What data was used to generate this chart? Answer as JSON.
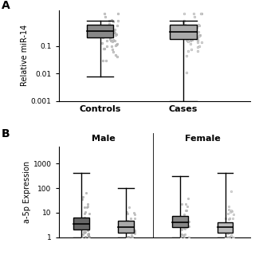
{
  "panel_A": {
    "ylabel": "Relative miR-14",
    "xlabel_labels": [
      "Controls",
      "Cases"
    ],
    "ylim_log": [
      0.001,
      2
    ],
    "yticks": [
      0.001,
      0.01,
      0.1
    ],
    "ytick_labels": [
      "0.001",
      "0.01",
      "0.1"
    ],
    "controls": {
      "q1": 0.2,
      "median": 0.35,
      "q3": 0.6,
      "whisker_low": 0.008,
      "whisker_high": 0.85,
      "box_color": "#888888",
      "scatter_color": "#cccccc"
    },
    "cases": {
      "q1": 0.18,
      "median": 0.32,
      "q3": 0.58,
      "whisker_low": 0.001,
      "whisker_high": 0.85,
      "box_color": "#aaaaaa",
      "scatter_color": "#dddddd"
    }
  },
  "panel_B": {
    "ylabel": "a-5p Expression",
    "ylim_log": [
      1,
      5000
    ],
    "yticks": [
      1,
      10,
      100,
      1000
    ],
    "ytick_labels": [
      "1",
      "10",
      "100",
      "1000"
    ],
    "male_label": "Male",
    "female_label": "Female",
    "Male_Controls": {
      "q1": 2.0,
      "median": 3.5,
      "q3": 6.5,
      "whisker_low": 1.0,
      "whisker_high": 400,
      "box_color": "#666666",
      "scatter_color": "#bbbbbb"
    },
    "Male_Cases": {
      "q1": 1.5,
      "median": 2.5,
      "q3": 4.5,
      "whisker_low": 1.0,
      "whisker_high": 100,
      "box_color": "#aaaaaa",
      "scatter_color": "#cccccc"
    },
    "Female_Controls": {
      "q1": 2.5,
      "median": 4.0,
      "q3": 7.5,
      "whisker_low": 1.0,
      "whisker_high": 300,
      "box_color": "#888888",
      "scatter_color": "#c8c8c8"
    },
    "Female_Cases": {
      "q1": 1.5,
      "median": 2.5,
      "q3": 4.0,
      "whisker_low": 1.0,
      "whisker_high": 400,
      "box_color": "#bbbbbb",
      "scatter_color": "#dddddd"
    }
  },
  "bg_color": "#ffffff",
  "fontsize_label": 7,
  "fontsize_tick": 6.5,
  "fontsize_xticklabel": 8,
  "fontsize_group_label": 8
}
